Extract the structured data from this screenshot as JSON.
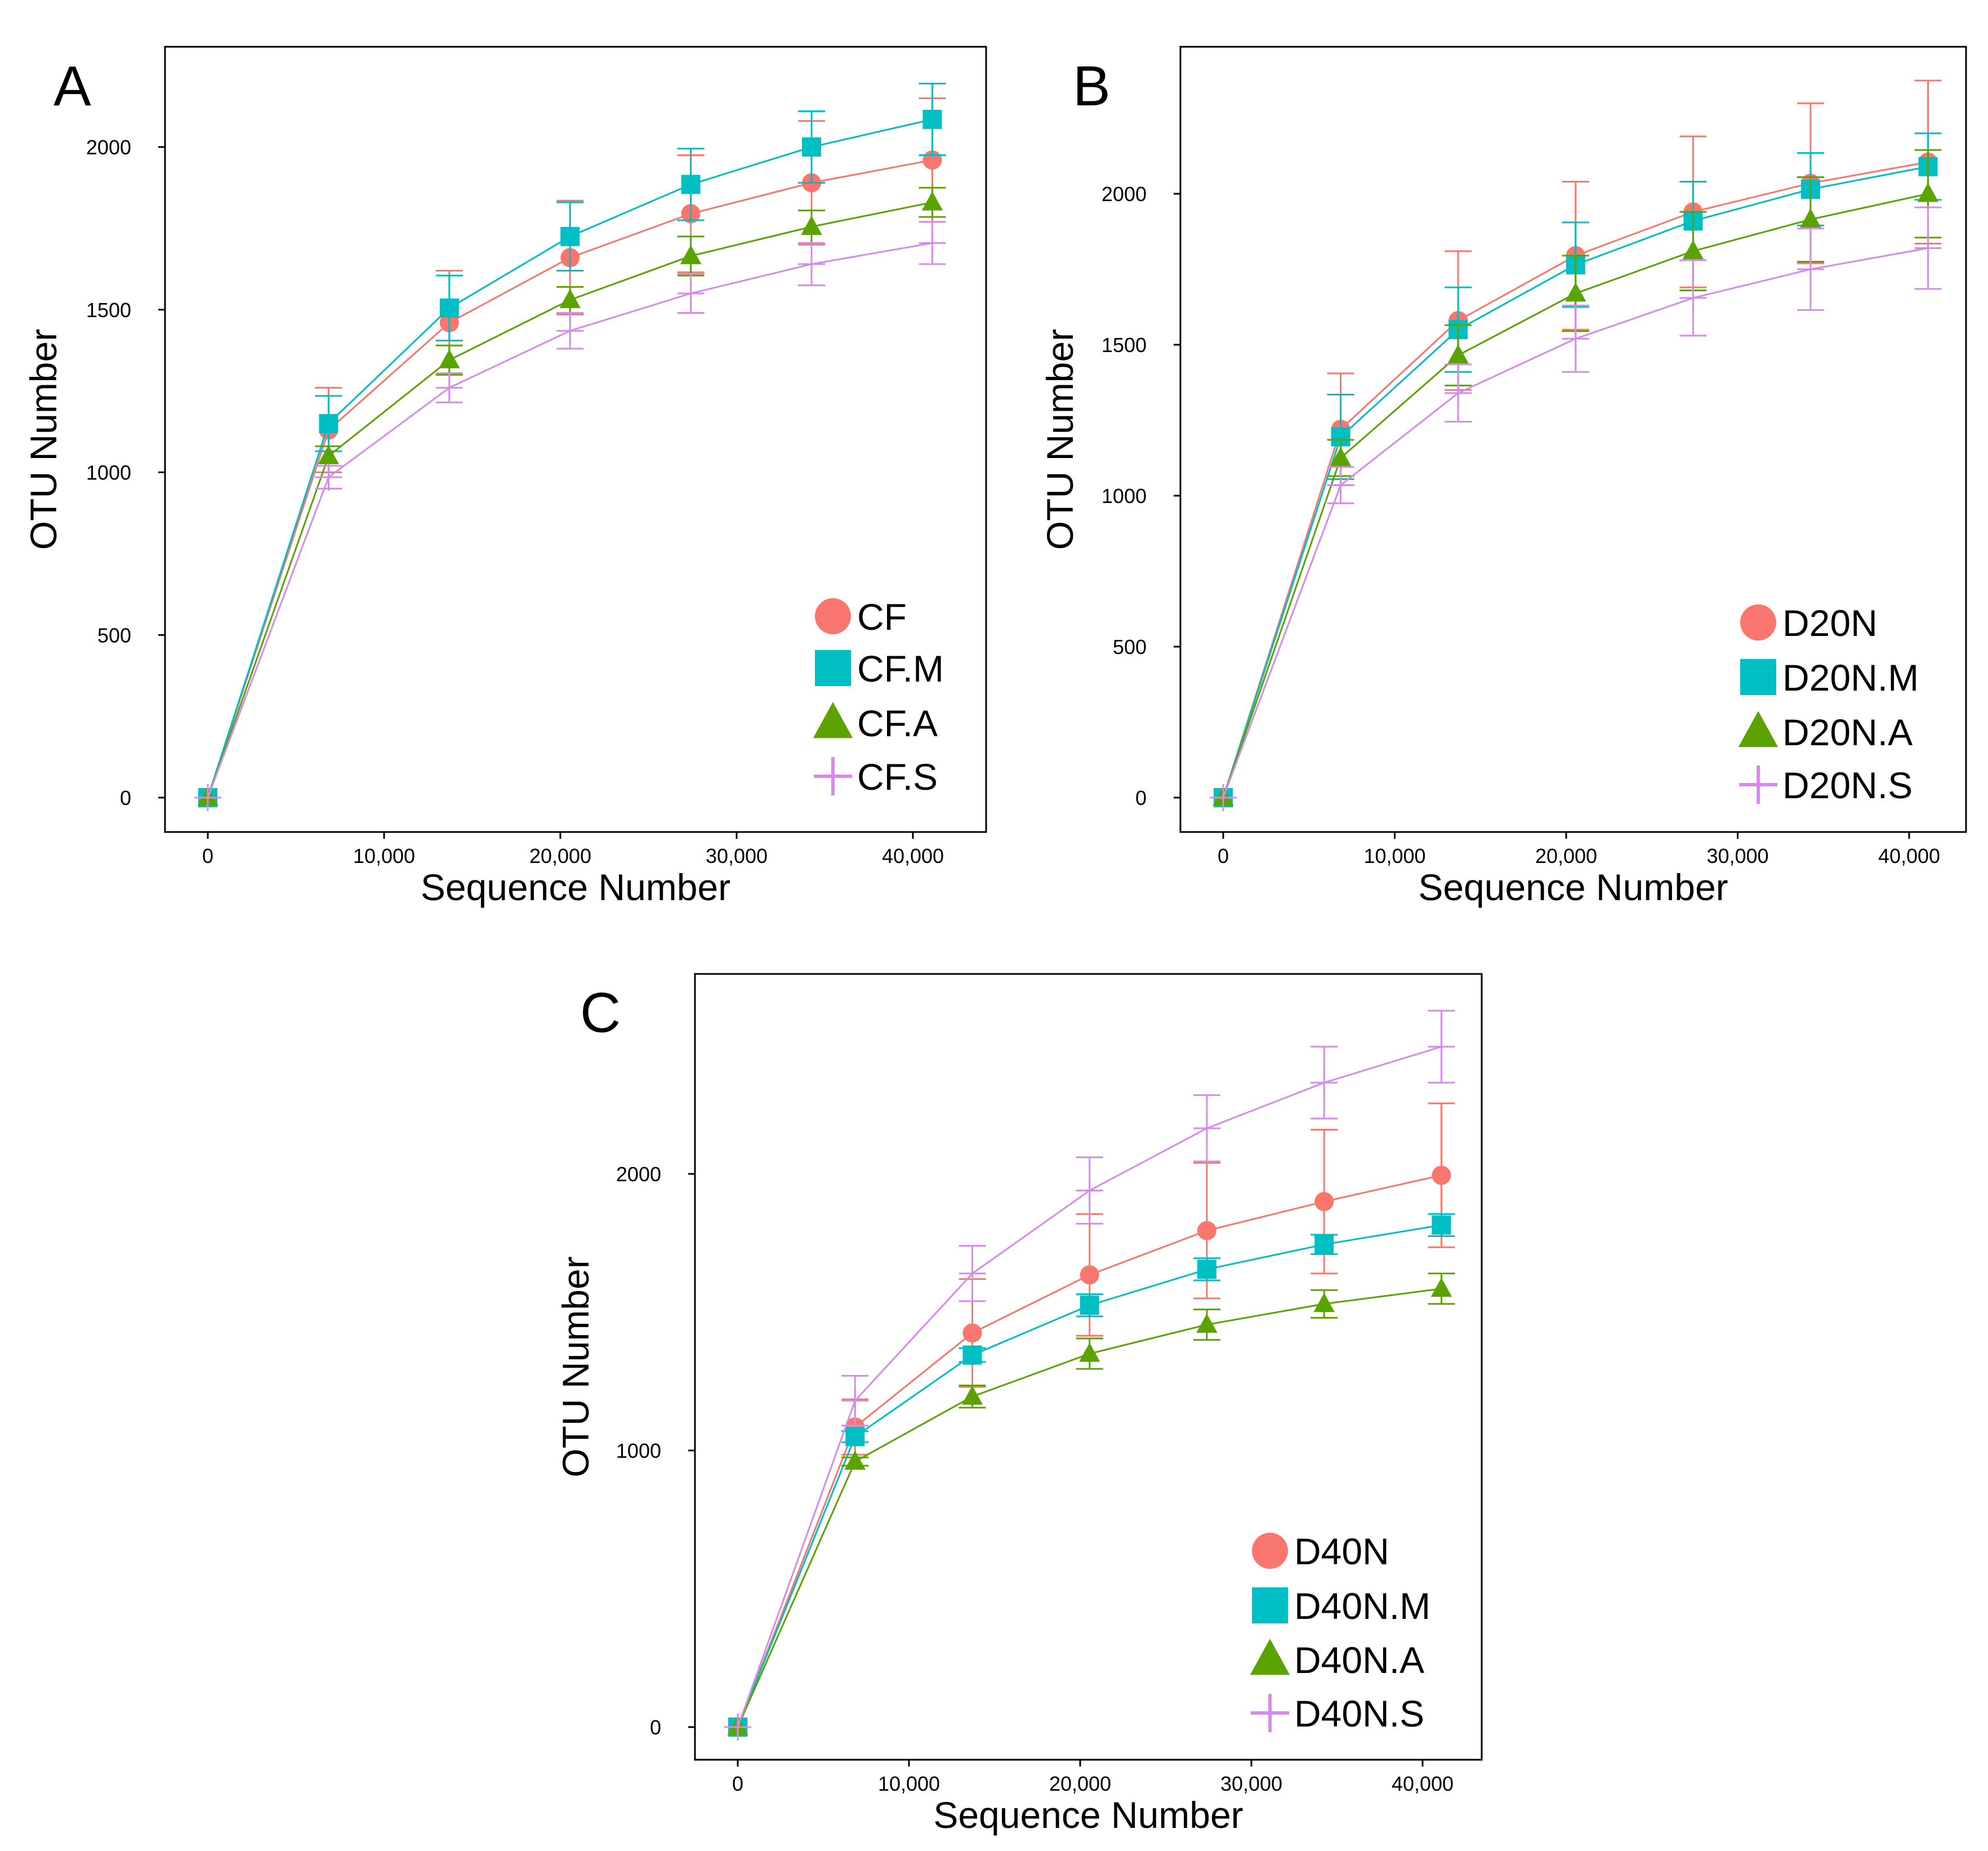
{
  "colors": {
    "N": "#F8766D",
    "M": "#00BFC4",
    "A": "#5BA300",
    "S": "#D68BEA"
  },
  "chart_data": [
    {
      "type": "line",
      "panel_label": "A",
      "xlabel": "Sequence Number",
      "ylabel": "OTU Number",
      "x": [
        0,
        6850,
        13700,
        20550,
        27400,
        34250,
        41100
      ],
      "xticks": [
        0,
        10000,
        20000,
        30000,
        40000
      ],
      "xtick_labels": [
        "0",
        "10,000",
        "20,000",
        "30,000",
        "40,000"
      ],
      "yticks": [
        0,
        500,
        1000,
        1500,
        2000
      ],
      "ytick_labels": [
        "0",
        "500",
        "1000",
        "1500",
        "2000"
      ],
      "legend_position": "bottom-right",
      "series": [
        {
          "name": "CF",
          "marker": "circle",
          "color_key": "N",
          "values": [
            0,
            1130,
            1460,
            1660,
            1795,
            1890,
            1960
          ],
          "error": [
            0,
            130,
            160,
            175,
            180,
            190,
            190
          ]
        },
        {
          "name": "CF.M",
          "marker": "square",
          "color_key": "M",
          "values": [
            0,
            1150,
            1505,
            1725,
            1885,
            2000,
            2085
          ],
          "error": [
            0,
            85,
            100,
            105,
            110,
            110,
            110
          ]
        },
        {
          "name": "CF.A",
          "marker": "triangle",
          "color_key": "A",
          "values": [
            0,
            1050,
            1345,
            1530,
            1665,
            1755,
            1830
          ],
          "error": [
            0,
            30,
            45,
            40,
            60,
            50,
            45
          ]
        },
        {
          "name": "CF.S",
          "marker": "cross",
          "color_key": "S",
          "values": [
            0,
            985,
            1260,
            1435,
            1550,
            1640,
            1705
          ],
          "error": [
            0,
            35,
            45,
            55,
            60,
            65,
            65
          ]
        }
      ]
    },
    {
      "type": "line",
      "panel_label": "B",
      "xlabel": "Sequence Number",
      "ylabel": "OTU Number",
      "x": [
        0,
        6850,
        13700,
        20550,
        27400,
        34250,
        41100
      ],
      "xticks": [
        0,
        10000,
        20000,
        30000,
        40000
      ],
      "xtick_labels": [
        "0",
        "10,000",
        "20,000",
        "30,000",
        "40,000"
      ],
      "yticks": [
        0,
        500,
        1000,
        1500,
        2000
      ],
      "ytick_labels": [
        "0",
        "500",
        "1000",
        "1500",
        "2000"
      ],
      "legend_position": "bottom-right",
      "series": [
        {
          "name": "D20N",
          "marker": "circle",
          "color_key": "N",
          "values": [
            0,
            1220,
            1580,
            1795,
            1940,
            2035,
            2105
          ],
          "error": [
            0,
            185,
            230,
            245,
            250,
            265,
            270
          ]
        },
        {
          "name": "D20N.M",
          "marker": "square",
          "color_key": "M",
          "values": [
            0,
            1195,
            1550,
            1765,
            1910,
            2015,
            2090
          ],
          "error": [
            0,
            140,
            140,
            140,
            130,
            120,
            110
          ]
        },
        {
          "name": "D20N.A",
          "marker": "triangle",
          "color_key": "A",
          "values": [
            0,
            1125,
            1465,
            1670,
            1810,
            1915,
            2000
          ],
          "error": [
            0,
            60,
            100,
            125,
            130,
            140,
            145
          ]
        },
        {
          "name": "D20N.S",
          "marker": "cross",
          "color_key": "S",
          "values": [
            0,
            1035,
            1340,
            1520,
            1655,
            1750,
            1820
          ],
          "error": [
            0,
            60,
            95,
            110,
            125,
            135,
            135
          ]
        }
      ]
    },
    {
      "type": "line",
      "panel_label": "C",
      "xlabel": "Sequence Number",
      "ylabel": "OTU Number",
      "x": [
        0,
        6850,
        13700,
        20550,
        27400,
        34250,
        41100
      ],
      "xticks": [
        0,
        10000,
        20000,
        30000,
        40000
      ],
      "xtick_labels": [
        "0",
        "10,000",
        "20,000",
        "30,000",
        "40,000"
      ],
      "yticks": [
        0,
        1000,
        2000
      ],
      "ytick_labels": [
        "0",
        "1000",
        "2000"
      ],
      "legend_position": "bottom-right",
      "series": [
        {
          "name": "D40N",
          "marker": "circle",
          "color_key": "N",
          "values": [
            0,
            1085,
            1425,
            1635,
            1795,
            1900,
            1995
          ],
          "error": [
            0,
            100,
            195,
            220,
            245,
            260,
            260
          ]
        },
        {
          "name": "D40N.M",
          "marker": "square",
          "color_key": "M",
          "values": [
            0,
            1050,
            1345,
            1525,
            1655,
            1745,
            1815
          ],
          "error": [
            0,
            20,
            25,
            40,
            40,
            35,
            40
          ]
        },
        {
          "name": "D40N.A",
          "marker": "triangle",
          "color_key": "A",
          "values": [
            0,
            960,
            1195,
            1350,
            1455,
            1530,
            1585
          ],
          "error": [
            0,
            15,
            40,
            55,
            55,
            50,
            55
          ]
        },
        {
          "name": "D40N.S",
          "marker": "cross",
          "color_key": "S",
          "values": [
            0,
            1180,
            1640,
            1940,
            2165,
            2330,
            2460
          ],
          "error": [
            0,
            90,
            100,
            120,
            120,
            130,
            130
          ]
        }
      ]
    }
  ]
}
